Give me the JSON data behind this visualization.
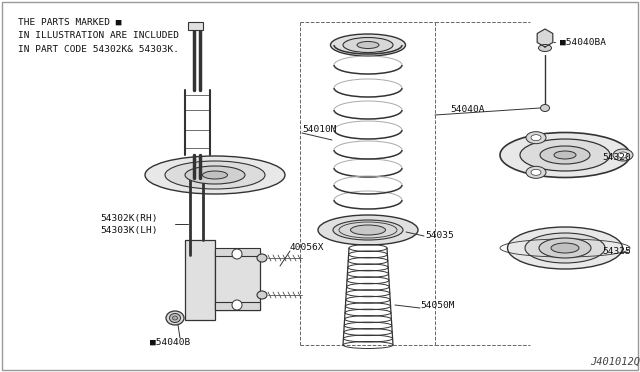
{
  "background_color": "#ffffff",
  "line_color": "#333333",
  "label_color": "#111111",
  "note_lines": [
    "THE PARTS MARKED ■",
    "IN ILLUSTRATION ARE INCLUDED",
    "IN PART CODE 54302K& 54303K."
  ],
  "footer": "J401012Q",
  "figsize": [
    6.4,
    3.72
  ],
  "dpi": 100
}
